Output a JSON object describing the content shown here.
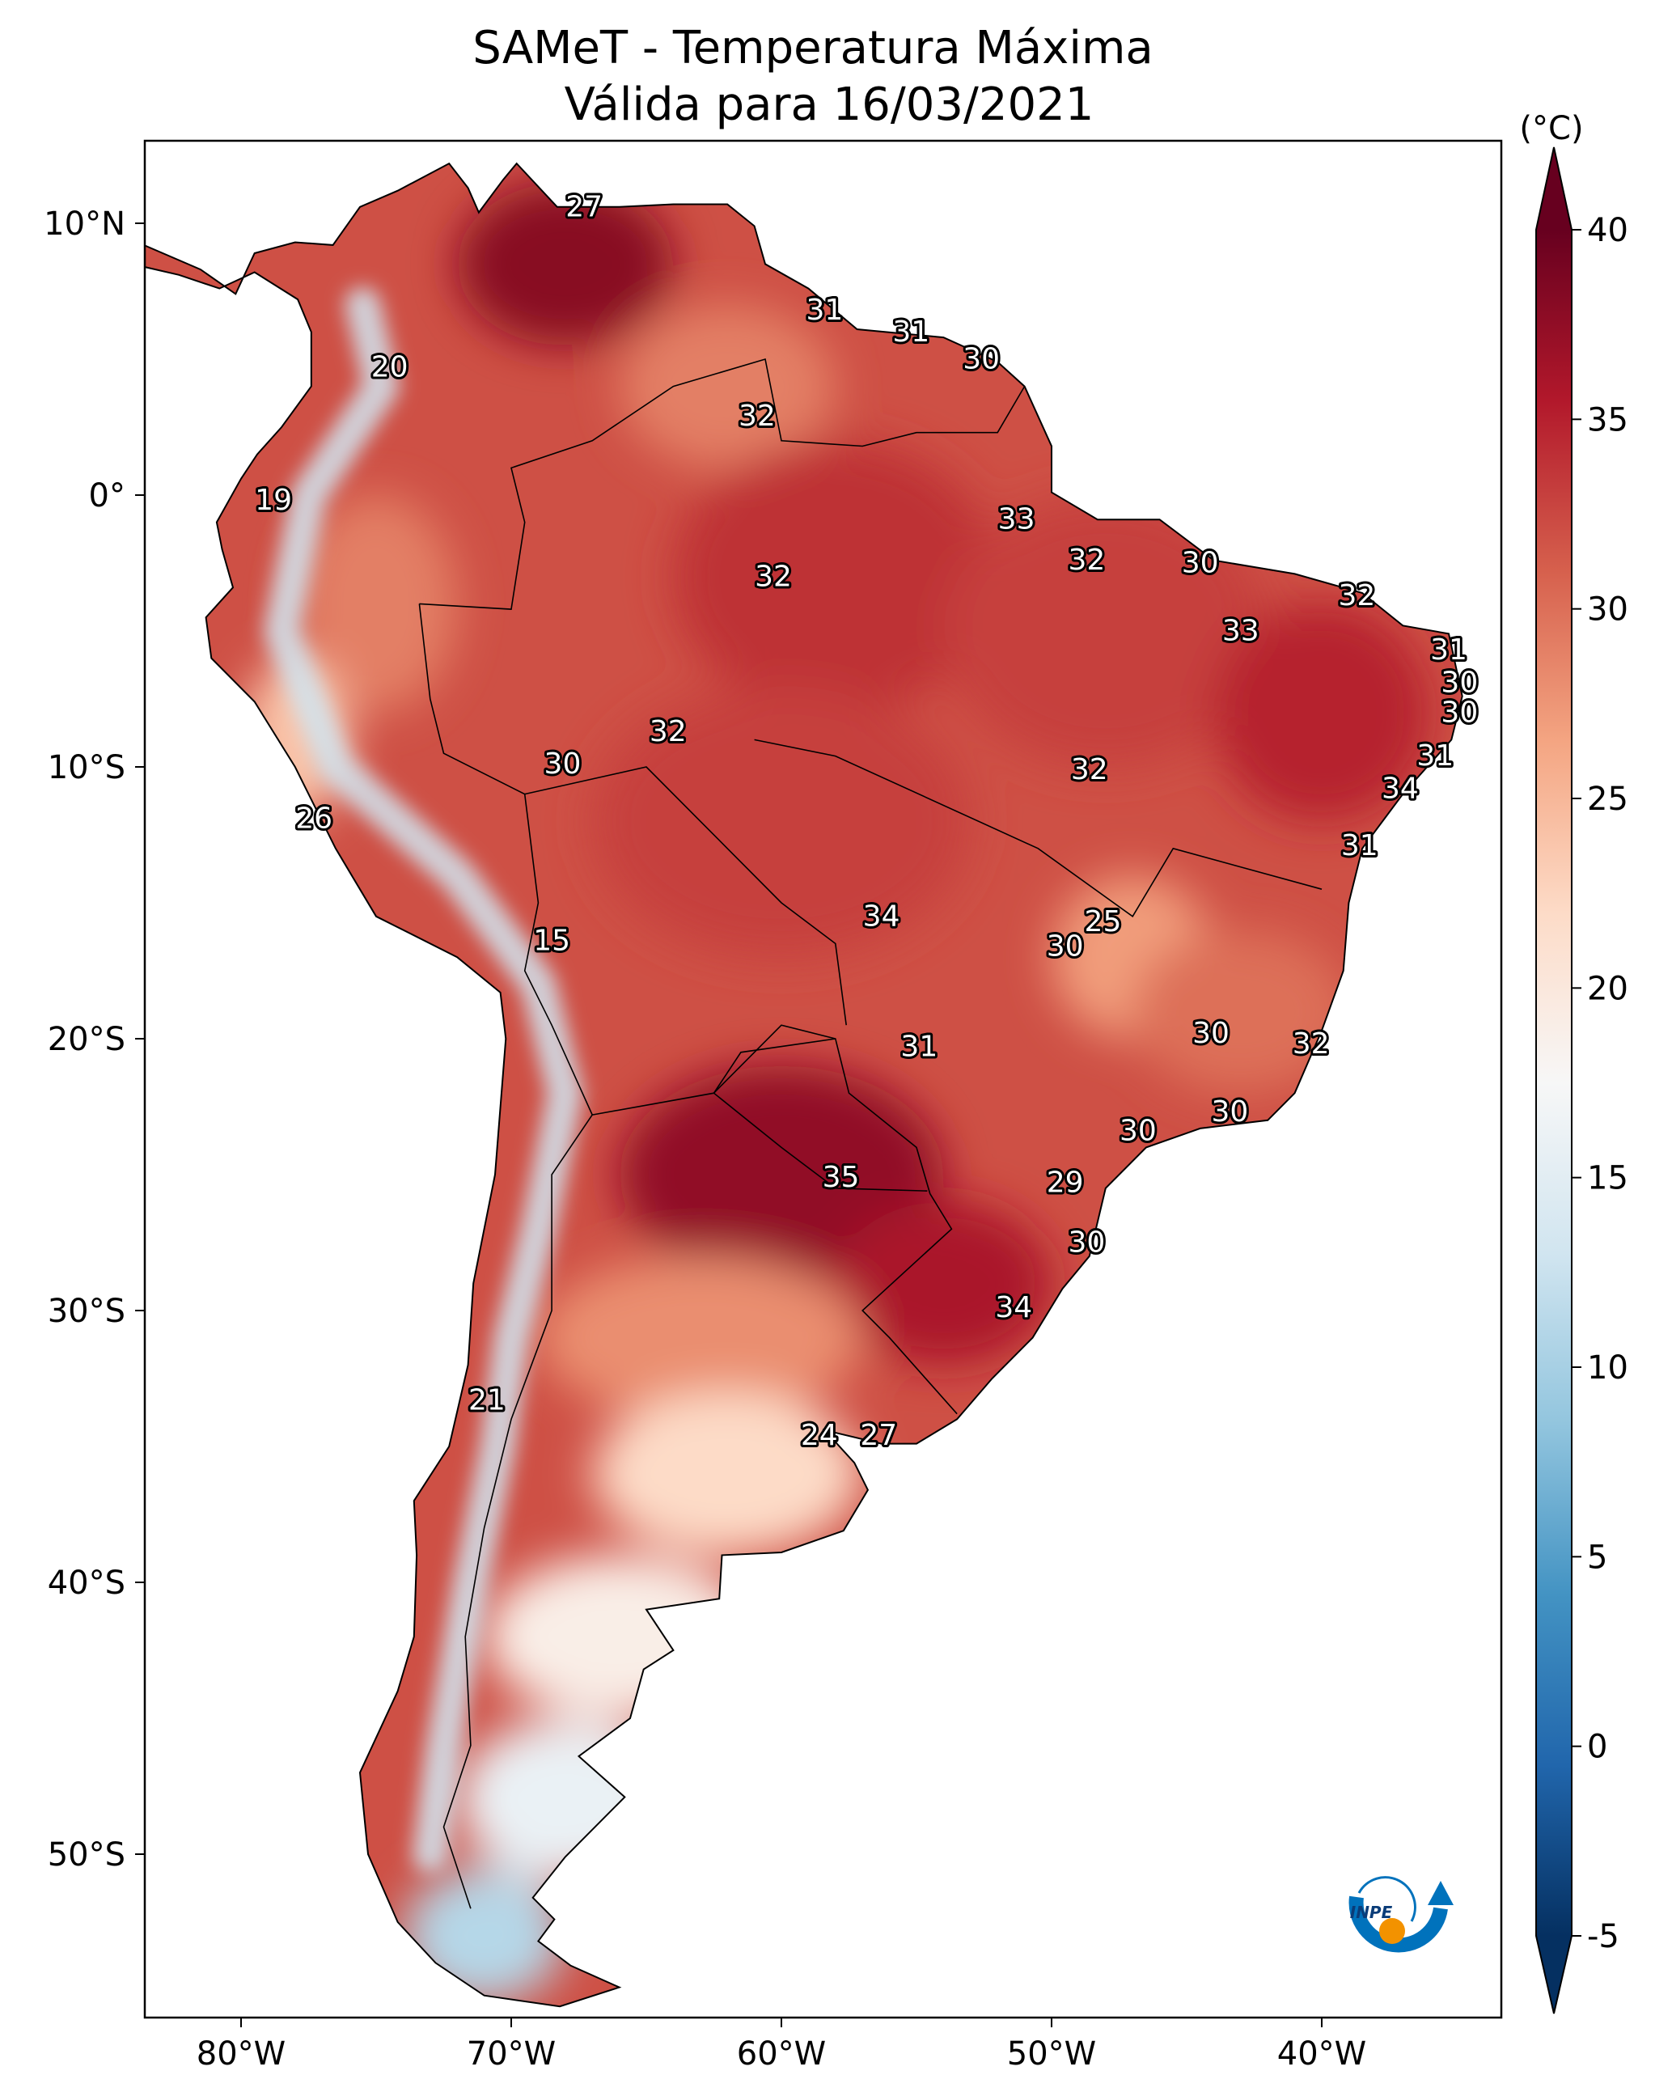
{
  "chart_data": {
    "type": "heatmap",
    "title": "SAMeT - Temperatura Máxima",
    "subtitle": "Válida para 16/03/2021",
    "colorbar": {
      "unit_label": "(°C)",
      "range": [
        -5,
        40
      ],
      "ticks": [
        -5,
        0,
        5,
        10,
        15,
        20,
        25,
        30,
        35,
        40
      ],
      "tick_labels": [
        "-5",
        "0",
        "5",
        "10",
        "15",
        "20",
        "25",
        "30",
        "35",
        "40"
      ],
      "colormap": [
        "#053061",
        "#2166ac",
        "#4393c3",
        "#92c5de",
        "#d1e5f0",
        "#f7f7f7",
        "#fddbc7",
        "#f4a582",
        "#d6604d",
        "#b2182b",
        "#67001f"
      ],
      "extend": "both"
    },
    "lon_range": [
      -83.56,
      -33.4
    ],
    "lat_range": [
      -56,
      13.05
    ],
    "lat_ticks": [
      {
        "value": 10,
        "label": "10°N"
      },
      {
        "value": 0,
        "label": "0°"
      },
      {
        "value": -10,
        "label": "10°S"
      },
      {
        "value": -20,
        "label": "20°S"
      },
      {
        "value": -30,
        "label": "30°S"
      },
      {
        "value": -40,
        "label": "40°S"
      },
      {
        "value": -50,
        "label": "50°S"
      }
    ],
    "lon_ticks": [
      {
        "value": -80,
        "label": "80°W"
      },
      {
        "value": -70,
        "label": "70°W"
      },
      {
        "value": -60,
        "label": "60°W"
      },
      {
        "value": -50,
        "label": "50°W"
      },
      {
        "value": -40,
        "label": "40°W"
      }
    ],
    "point_labels": [
      {
        "lon": -67.3,
        "lat": 10.6,
        "value": "27"
      },
      {
        "lon": -58.4,
        "lat": 6.8,
        "value": "31"
      },
      {
        "lon": -55.2,
        "lat": 6.0,
        "value": "31"
      },
      {
        "lon": -52.6,
        "lat": 5.0,
        "value": "30"
      },
      {
        "lon": -74.5,
        "lat": 4.7,
        "value": "20"
      },
      {
        "lon": -60.9,
        "lat": 2.9,
        "value": "32"
      },
      {
        "lon": -78.8,
        "lat": -0.2,
        "value": "19"
      },
      {
        "lon": -51.3,
        "lat": -0.9,
        "value": "33"
      },
      {
        "lon": -48.7,
        "lat": -2.4,
        "value": "32"
      },
      {
        "lon": -60.3,
        "lat": -3.0,
        "value": "32"
      },
      {
        "lon": -44.5,
        "lat": -2.5,
        "value": "30"
      },
      {
        "lon": -38.7,
        "lat": -3.7,
        "value": "32"
      },
      {
        "lon": -43.0,
        "lat": -5.0,
        "value": "33"
      },
      {
        "lon": -35.3,
        "lat": -5.7,
        "value": "31"
      },
      {
        "lon": -34.9,
        "lat": -6.9,
        "value": "30"
      },
      {
        "lon": -34.9,
        "lat": -8.0,
        "value": "30"
      },
      {
        "lon": -64.2,
        "lat": -8.7,
        "value": "32"
      },
      {
        "lon": -68.1,
        "lat": -9.9,
        "value": "30"
      },
      {
        "lon": -35.8,
        "lat": -9.6,
        "value": "31"
      },
      {
        "lon": -48.6,
        "lat": -10.1,
        "value": "32"
      },
      {
        "lon": -37.1,
        "lat": -10.8,
        "value": "34"
      },
      {
        "lon": -77.3,
        "lat": -11.9,
        "value": "26"
      },
      {
        "lon": -38.6,
        "lat": -12.9,
        "value": "31"
      },
      {
        "lon": -56.3,
        "lat": -15.5,
        "value": "34"
      },
      {
        "lon": -48.1,
        "lat": -15.7,
        "value": "25"
      },
      {
        "lon": -68.5,
        "lat": -16.4,
        "value": "15"
      },
      {
        "lon": -49.5,
        "lat": -16.6,
        "value": "30"
      },
      {
        "lon": -44.1,
        "lat": -19.8,
        "value": "30"
      },
      {
        "lon": -40.4,
        "lat": -20.2,
        "value": "32"
      },
      {
        "lon": -54.9,
        "lat": -20.3,
        "value": "31"
      },
      {
        "lon": -43.4,
        "lat": -22.7,
        "value": "30"
      },
      {
        "lon": -46.8,
        "lat": -23.4,
        "value": "30"
      },
      {
        "lon": -57.8,
        "lat": -25.1,
        "value": "35"
      },
      {
        "lon": -49.5,
        "lat": -25.3,
        "value": "29"
      },
      {
        "lon": -48.7,
        "lat": -27.5,
        "value": "30"
      },
      {
        "lon": -51.4,
        "lat": -29.9,
        "value": "34"
      },
      {
        "lon": -70.9,
        "lat": -33.3,
        "value": "21"
      },
      {
        "lon": -58.6,
        "lat": -34.6,
        "value": "24"
      },
      {
        "lon": -56.4,
        "lat": -34.6,
        "value": "27"
      }
    ]
  },
  "logo": {
    "text": "INPE",
    "orange": "#f39200",
    "blue": "#0072bc"
  }
}
